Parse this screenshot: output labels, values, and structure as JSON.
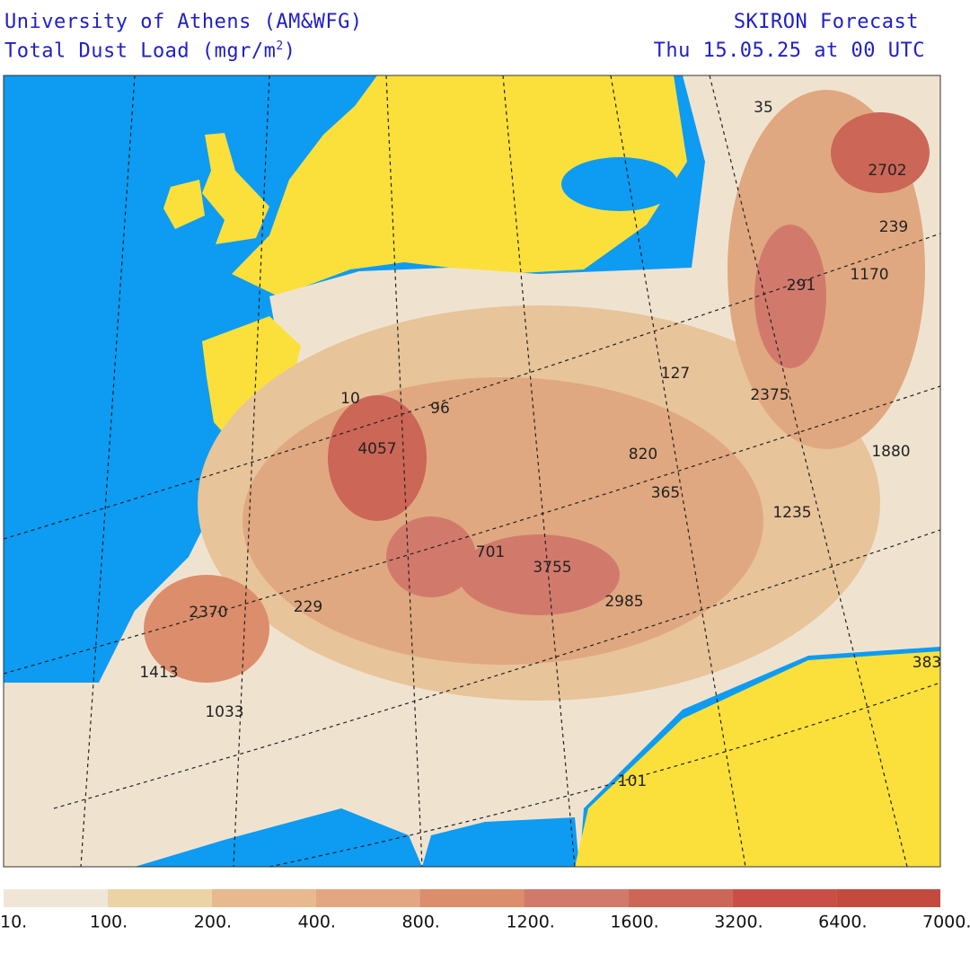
{
  "header": {
    "left_line1": "University of Athens (AM&WFG)",
    "left_line2": "Total Dust Load (mgr/m",
    "left_line2_sup": "2",
    "left_line2_end": ")",
    "right_line1": "SKIRON Forecast",
    "right_line2": "Thu 15.05.25 at 00 UTC"
  },
  "map": {
    "labels": [
      "35",
      "2702",
      "239",
      "291",
      "1170",
      "127",
      "2375",
      "1880",
      "10",
      "96",
      "4057",
      "820",
      "365",
      "1235",
      "701",
      "3755",
      "2985",
      "2370",
      "229",
      "1413",
      "1033",
      "101",
      "383"
    ]
  },
  "colorbar": {
    "labels": [
      "10.",
      "100.",
      "200.",
      "400.",
      "800.",
      "1200.",
      "1600.",
      "3200.",
      "6400.",
      "7000."
    ],
    "colors": [
      "#f0e6d8",
      "#ecd3a6",
      "#e8b98e",
      "#e2a682",
      "#dc8d6c",
      "#d17a6c",
      "#cc6656",
      "#cb4e46",
      "#c44a40"
    ]
  }
}
